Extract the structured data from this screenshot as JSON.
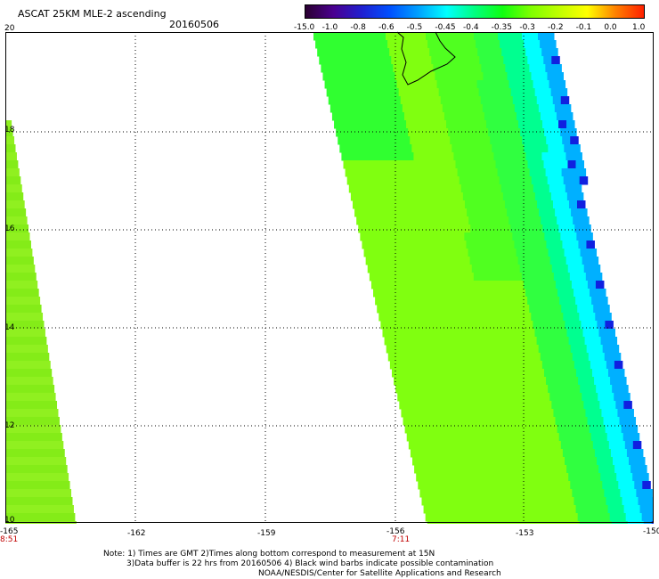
{
  "header": {
    "title": "ASCAT 25KM MLE-2 ascending",
    "date": "20160506"
  },
  "colorbar": {
    "labels": [
      "-15.0",
      "-1.0",
      "-0.8",
      "-0.6",
      "-0.5",
      "-0.45",
      "-0.4",
      "-0.35",
      "-0.3",
      "-0.2",
      "-0.1",
      "0.0",
      "1.0"
    ],
    "colors": [
      "#2a0030",
      "#4a0090",
      "#2020d0",
      "#0050ff",
      "#00a0ff",
      "#00ffff",
      "#00ff80",
      "#10ff10",
      "#80ff00",
      "#c0ff00",
      "#ffff00",
      "#ff8000",
      "#ff2000"
    ]
  },
  "axes": {
    "lat_labels": [
      "20",
      "18",
      "16",
      "14",
      "12",
      "10"
    ],
    "lon_labels": [
      "-165",
      "-162",
      "-159",
      "-156",
      "-153",
      "-150"
    ],
    "lon_range": [
      -165,
      -150
    ],
    "lat_range": [
      10,
      20
    ],
    "gridlines": true
  },
  "times": {
    "left": "8:51",
    "middle": "7:11"
  },
  "notes": {
    "line1": "Note: 1) Times are GMT 2)Times along bottom correspond to measurement at 15N",
    "line2": "3)Data buffer is 22 hrs from 20160506 4) Black wind barbs indicate possible contamination",
    "line3": "NOAA/NESDIS/Center for Satellite Applications and Research"
  }
}
